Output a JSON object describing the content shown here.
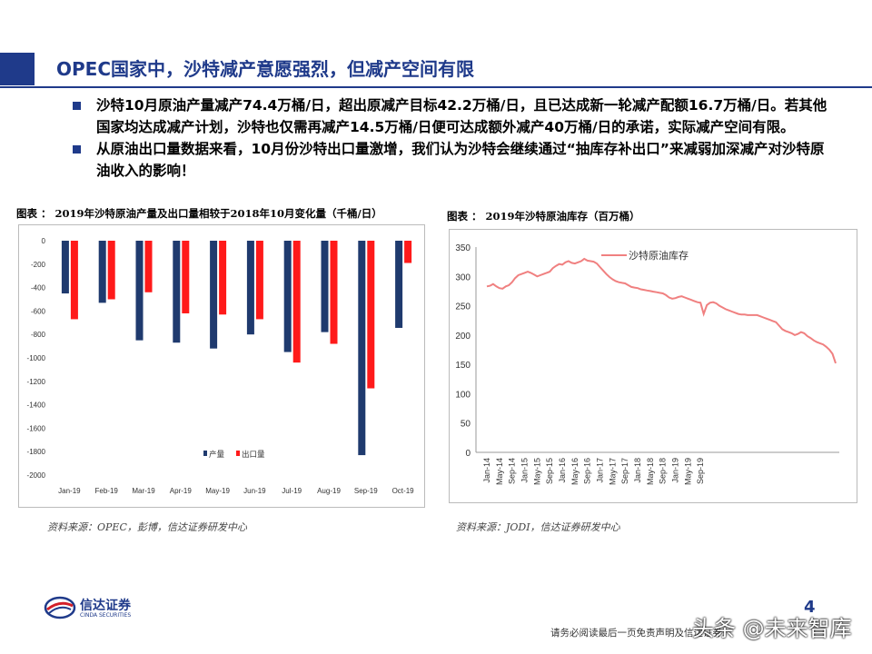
{
  "title": "OPEC国家中，沙特减产意愿强烈，但减产空间有限",
  "bullets": [
    "沙特10月原油产量减产74.4万桶/日，超出原减产目标42.2万桶/日，且已达成新一轮减产配额16.7万桶/日。若其他国家均达成减产计划，沙特也仅需再减产14.5万桶/日便可达成额外减产40万桶/日的承诺，实际减产空间有限。",
    "从原油出口量数据来看，10月份沙特出口量激增，我们认为沙特会继续通过“抽库存补出口”来减弱加深减产对沙特原油收入的影响！"
  ],
  "figures": {
    "left_caption": "图表 ：  2019年沙特原油产量及出口量相较于2018年10月变化量（千桶/日）",
    "right_caption": "图表 ：  2019年沙特原油库存（百万桶）",
    "left_source": "资料来源：OPEC，彭博，信达证券研发中心",
    "right_source": "资料来源：JODI，信达证券研发中心"
  },
  "chart_data": [
    {
      "type": "bar",
      "categories": [
        "Jan-19",
        "Feb-19",
        "Mar-19",
        "Apr-19",
        "May-19",
        "Jun-19",
        "Jul-19",
        "Aug-19",
        "Sep-19",
        "Oct-19"
      ],
      "series": [
        {
          "name": "产量",
          "color": "#1f3a6e",
          "values": [
            -450,
            -530,
            -850,
            -870,
            -920,
            -800,
            -950,
            -780,
            -1830,
            -744
          ]
        },
        {
          "name": "出口量",
          "color": "#ff1a1a",
          "values": [
            -670,
            -500,
            -440,
            -620,
            -630,
            -670,
            -1040,
            -880,
            -1260,
            -190
          ]
        }
      ],
      "ylim": [
        -2000,
        0
      ],
      "yticks": [
        0,
        -200,
        -400,
        -600,
        -800,
        -1000,
        -1200,
        -1400,
        -1600,
        -1800,
        -2000
      ],
      "legend": "bottom-right",
      "grid": false
    },
    {
      "type": "line",
      "series": [
        {
          "name": "沙特原油库存",
          "color": "#f08080",
          "values": [
            283,
            284,
            287,
            283,
            280,
            279,
            283,
            285,
            290,
            297,
            302,
            304,
            306,
            308,
            306,
            303,
            300,
            302,
            304,
            306,
            308,
            314,
            318,
            321,
            320,
            324,
            326,
            323,
            322,
            324,
            326,
            330,
            327,
            326,
            325,
            322,
            316,
            310,
            304,
            299,
            295,
            292,
            290,
            289,
            288,
            285,
            282,
            281,
            280,
            278,
            277,
            276,
            275,
            274,
            273,
            272,
            271,
            268,
            264,
            262,
            263,
            265,
            266,
            264,
            262,
            260,
            258,
            256,
            255,
            236,
            251,
            255,
            256,
            254,
            250,
            247,
            244,
            242,
            240,
            238,
            236,
            235,
            235,
            234,
            234,
            234,
            234,
            232,
            230,
            228,
            226,
            224,
            222,
            216,
            210,
            207,
            205,
            203,
            200,
            202,
            205,
            203,
            198,
            195,
            191,
            188,
            186,
            184,
            180,
            175,
            168,
            152
          ]
        }
      ],
      "x_ticks": [
        "Jan-14",
        "May-14",
        "Sep-14",
        "Jan-15",
        "May-15",
        "Sep-15",
        "Jan-16",
        "May-16",
        "Sep-16",
        "Jan-17",
        "May-17",
        "Sep-17",
        "Jan-18",
        "May-18",
        "Sep-18",
        "Jan-19",
        "May-19",
        "Sep-19"
      ],
      "ylim": [
        0,
        350
      ],
      "yticks": [
        0,
        50,
        100,
        150,
        200,
        250,
        300,
        350
      ],
      "legend": "top-left",
      "grid": false
    }
  ],
  "logo": {
    "cn": "信达证券",
    "en": "CINDA SECURITIES"
  },
  "page_number": "4",
  "footer_note": "请务必阅读最后一页免责声明及信达证券",
  "watermark": "头条 @未来智库"
}
